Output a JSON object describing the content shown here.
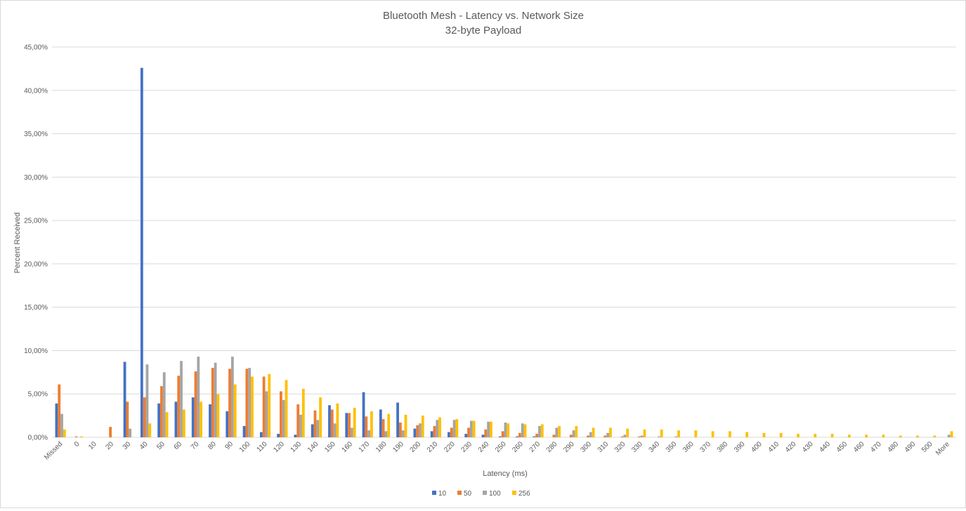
{
  "chart_data": {
    "type": "bar",
    "title": "Bluetooth Mesh - Latency vs. Network Size",
    "subtitle": "32-byte Payload",
    "xlabel": "Latency (ms)",
    "ylabel": "Percent Received",
    "ylim": [
      0,
      45
    ],
    "yticks": [
      "0,00%",
      "5,00%",
      "10,00%",
      "15,00%",
      "20,00%",
      "25,00%",
      "30,00%",
      "35,00%",
      "40,00%",
      "45,00%"
    ],
    "grid": true,
    "legend_position": "bottom",
    "categories": [
      "Missed",
      "0",
      "10",
      "20",
      "30",
      "40",
      "50",
      "60",
      "70",
      "80",
      "90",
      "100",
      "110",
      "120",
      "130",
      "140",
      "150",
      "160",
      "170",
      "180",
      "190",
      "200",
      "210",
      "220",
      "230",
      "240",
      "250",
      "260",
      "270",
      "280",
      "290",
      "300",
      "310",
      "320",
      "330",
      "340",
      "350",
      "360",
      "370",
      "380",
      "390",
      "400",
      "410",
      "420",
      "430",
      "440",
      "450",
      "460",
      "470",
      "480",
      "490",
      "500",
      "More"
    ],
    "series": [
      {
        "name": "10",
        "color": "#4472C4",
        "values": [
          3.9,
          0,
          0,
          0,
          8.7,
          42.6,
          3.9,
          4.1,
          4.6,
          3.8,
          3.0,
          1.3,
          0.6,
          0.4,
          0.3,
          1.5,
          3.7,
          2.8,
          5.2,
          3.2,
          4.0,
          1.0,
          0.7,
          0.6,
          0.4,
          0.3,
          0.1,
          0.1,
          0.1,
          0,
          0,
          0,
          0,
          0,
          0,
          0,
          0,
          0,
          0,
          0,
          0,
          0,
          0,
          0,
          0,
          0,
          0,
          0,
          0,
          0,
          0,
          0,
          0
        ]
      },
      {
        "name": "50",
        "color": "#ED7D31",
        "values": [
          6.1,
          0.1,
          0,
          1.2,
          4.1,
          4.6,
          5.9,
          7.1,
          7.6,
          8.0,
          7.9,
          7.9,
          7.0,
          5.3,
          3.8,
          3.1,
          3.2,
          2.8,
          2.4,
          2.1,
          1.7,
          1.4,
          1.3,
          1.1,
          1.1,
          0.9,
          0.7,
          0.5,
          0.4,
          0.3,
          0.3,
          0.2,
          0.2,
          0.1,
          0.1,
          0,
          0,
          0,
          0,
          0,
          0,
          0,
          0,
          0,
          0,
          0,
          0,
          0,
          0,
          0,
          0,
          0,
          0
        ]
      },
      {
        "name": "100",
        "color": "#A5A5A5",
        "values": [
          2.7,
          0,
          0,
          0,
          1.0,
          8.4,
          7.5,
          8.8,
          9.3,
          8.6,
          9.3,
          8.0,
          5.3,
          4.3,
          2.6,
          2.0,
          1.6,
          1.1,
          0.8,
          0.7,
          0.8,
          1.6,
          2.0,
          2.0,
          1.9,
          1.8,
          1.7,
          1.6,
          1.3,
          1.1,
          0.8,
          0.6,
          0.5,
          0.3,
          0.2,
          0.1,
          0.1,
          0,
          0,
          0,
          0,
          0,
          0,
          0,
          0,
          0,
          0,
          0,
          0,
          0,
          0,
          0,
          0.3
        ]
      },
      {
        "name": "256",
        "color": "#FFC000",
        "values": [
          0.9,
          0.1,
          0,
          0,
          0,
          1.6,
          2.9,
          3.2,
          4.1,
          5.0,
          6.1,
          7.0,
          7.3,
          6.6,
          5.6,
          4.6,
          3.9,
          3.4,
          3.0,
          2.7,
          2.6,
          2.5,
          2.3,
          2.1,
          1.9,
          1.8,
          1.6,
          1.5,
          1.5,
          1.3,
          1.3,
          1.1,
          1.1,
          1.0,
          0.9,
          0.9,
          0.8,
          0.8,
          0.7,
          0.7,
          0.6,
          0.5,
          0.5,
          0.4,
          0.4,
          0.4,
          0.3,
          0.3,
          0.3,
          0.2,
          0.2,
          0.2,
          0.7
        ]
      }
    ]
  }
}
